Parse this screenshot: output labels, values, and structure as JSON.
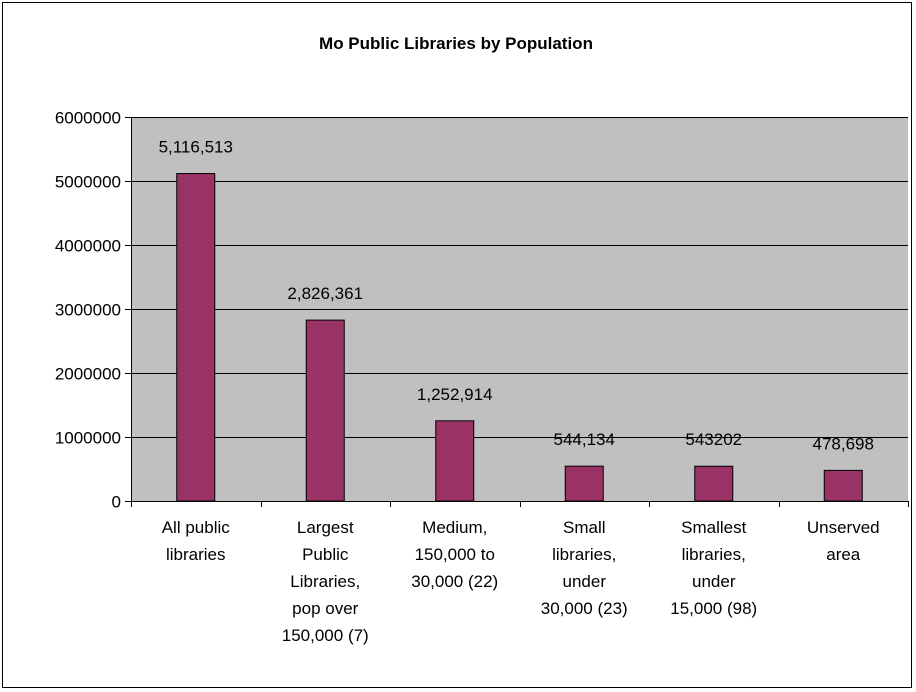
{
  "chart_data": {
    "type": "bar",
    "title": "Mo Public Libraries by Population",
    "xlabel": "",
    "ylabel": "",
    "categories": [
      [
        "All public",
        "libraries"
      ],
      [
        "Largest",
        "Public",
        "Libraries,",
        "pop over",
        "150,000 (7)"
      ],
      [
        "Medium,",
        "150,000 to",
        "30,000 (22)"
      ],
      [
        "Small",
        "libraries,",
        "under",
        "30,000 (23)"
      ],
      [
        "Smallest",
        "libraries,",
        "under",
        "15,000 (98)"
      ],
      [
        "Unserved",
        "area"
      ]
    ],
    "values": [
      5116513,
      2826361,
      1252914,
      544134,
      543202,
      478698
    ],
    "data_labels": [
      "5,116,513",
      "2,826,361",
      "1,252,914",
      "544,134",
      "543202",
      "478,698"
    ],
    "ylim": [
      0,
      6000000
    ],
    "yticks": [
      "0",
      "1000000",
      "2000000",
      "3000000",
      "4000000",
      "5000000",
      "6000000"
    ],
    "grid": true,
    "colors": {
      "bar": "#993366",
      "plot_background": "#c0c0c0",
      "gridline": "#000000"
    }
  }
}
